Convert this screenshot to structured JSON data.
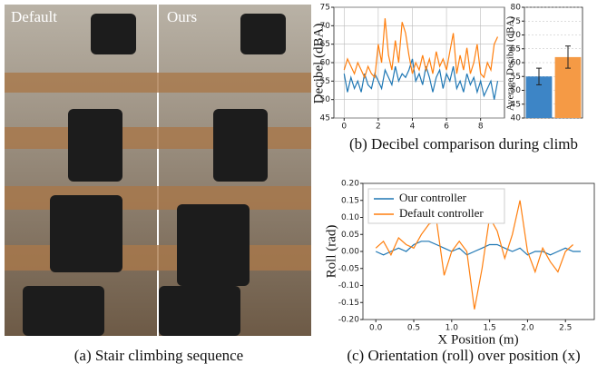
{
  "panel_a": {
    "labels": [
      "Default",
      "Ours"
    ],
    "caption": "(a) Stair climbing sequence"
  },
  "chart_data": [
    {
      "type": "line",
      "caption": "(b) Decibel comparison during climb",
      "y_label": "Decibel (dBA)",
      "x": [
        0,
        0.2,
        0.4,
        0.6,
        0.8,
        1.0,
        1.2,
        1.4,
        1.6,
        1.8,
        2.0,
        2.2,
        2.4,
        2.6,
        2.8,
        3.0,
        3.2,
        3.4,
        3.6,
        3.8,
        4.0,
        4.2,
        4.4,
        4.6,
        4.8,
        5.0,
        5.2,
        5.4,
        5.6,
        5.8,
        6.0,
        6.2,
        6.4,
        6.6,
        6.8,
        7.0,
        7.2,
        7.4,
        7.6,
        7.8,
        8.0,
        8.2,
        8.4,
        8.6,
        8.8,
        9.0
      ],
      "series": [
        {
          "color": "#1f77b4",
          "values": [
            57,
            52,
            56,
            53,
            55,
            52,
            57,
            54,
            53,
            57,
            55,
            53,
            58,
            56,
            54,
            59,
            55,
            57,
            56,
            58,
            61,
            55,
            57,
            54,
            59,
            56,
            52,
            56,
            58,
            53,
            57,
            55,
            59,
            53,
            55,
            52,
            57,
            54,
            56,
            52,
            55,
            51,
            53,
            55,
            50,
            55
          ]
        },
        {
          "color": "#ff7f0e",
          "values": [
            58,
            61,
            59,
            57,
            60,
            58,
            56,
            59,
            57,
            56,
            65,
            60,
            72,
            62,
            58,
            66,
            60,
            71,
            68,
            62,
            57,
            60,
            58,
            62,
            58,
            61,
            57,
            63,
            59,
            61,
            58,
            63,
            68,
            57,
            62,
            58,
            64,
            57,
            60,
            65,
            57,
            56,
            60,
            58,
            65,
            67
          ]
        }
      ],
      "xlim": [
        -0.6,
        9.4
      ],
      "ylim": [
        45,
        75
      ],
      "xticks": [
        0,
        2,
        4,
        6,
        8
      ],
      "yticks": [
        45,
        50,
        55,
        60,
        65,
        70,
        75
      ],
      "grid": true
    },
    {
      "type": "bar",
      "y_label": "Average Decibel (dBA)",
      "categories": [
        null,
        null
      ],
      "values": [
        55,
        62
      ],
      "errors": [
        3,
        4
      ],
      "colors": [
        "#3d85c6",
        "#f59a45"
      ],
      "ylim": [
        40,
        80
      ],
      "yticks": [
        40,
        45,
        50,
        55,
        60,
        65,
        70,
        75,
        80
      ],
      "grid": true
    },
    {
      "type": "line",
      "caption": "(c) Orientation (roll) over position (x)",
      "x_label": "X Position (m)",
      "y_label": "Roll (rad)",
      "x": [
        0.0,
        0.1,
        0.2,
        0.3,
        0.4,
        0.5,
        0.6,
        0.7,
        0.8,
        0.9,
        1.0,
        1.1,
        1.2,
        1.3,
        1.4,
        1.5,
        1.6,
        1.7,
        1.8,
        1.9,
        2.0,
        2.1,
        2.2,
        2.3,
        2.4,
        2.5,
        2.6,
        2.7
      ],
      "series": [
        {
          "name": "Our controller",
          "color": "#1f77b4",
          "values": [
            0.0,
            -0.01,
            0.0,
            0.01,
            0.0,
            0.02,
            0.03,
            0.03,
            0.02,
            0.01,
            0.0,
            0.01,
            -0.01,
            0.0,
            0.01,
            0.02,
            0.02,
            0.01,
            0.0,
            0.01,
            -0.01,
            0.0,
            0.0,
            -0.01,
            0.0,
            0.01,
            0.0,
            0.0
          ]
        },
        {
          "name": "Default controller",
          "color": "#ff7f0e",
          "values": [
            0.01,
            0.03,
            -0.01,
            0.04,
            0.02,
            0.01,
            0.05,
            0.08,
            0.09,
            -0.07,
            0.0,
            0.03,
            0.0,
            -0.17,
            -0.05,
            0.1,
            0.06,
            -0.02,
            0.05,
            0.15,
            0.0,
            -0.06,
            0.01,
            -0.03,
            -0.06,
            0.0,
            0.02,
            null
          ]
        }
      ],
      "xlim": [
        -0.17,
        2.88
      ],
      "ylim": [
        -0.2,
        0.2
      ],
      "xticks": [
        {
          "value": 0,
          "label": "0.0"
        },
        {
          "value": 0.5,
          "label": "0.5"
        },
        {
          "value": 1,
          "label": "1.0"
        },
        {
          "value": 1.5,
          "label": "1.5"
        },
        {
          "value": 2,
          "label": "2.0"
        },
        {
          "value": 2.5,
          "label": "2.5"
        }
      ],
      "yticks": [
        {
          "value": -0.2,
          "label": "-0.20"
        },
        {
          "value": -0.15,
          "label": "-0.15"
        },
        {
          "value": -0.1,
          "label": "-0.10"
        },
        {
          "value": -0.05,
          "label": "-0.05"
        },
        {
          "value": 0,
          "label": "0.00"
        },
        {
          "value": 0.05,
          "label": "0.05"
        },
        {
          "value": 0.1,
          "label": "0.10"
        },
        {
          "value": 0.15,
          "label": "0.15"
        },
        {
          "value": 0.2,
          "label": "0.20"
        }
      ],
      "grid": false,
      "legend": "upper left"
    }
  ]
}
